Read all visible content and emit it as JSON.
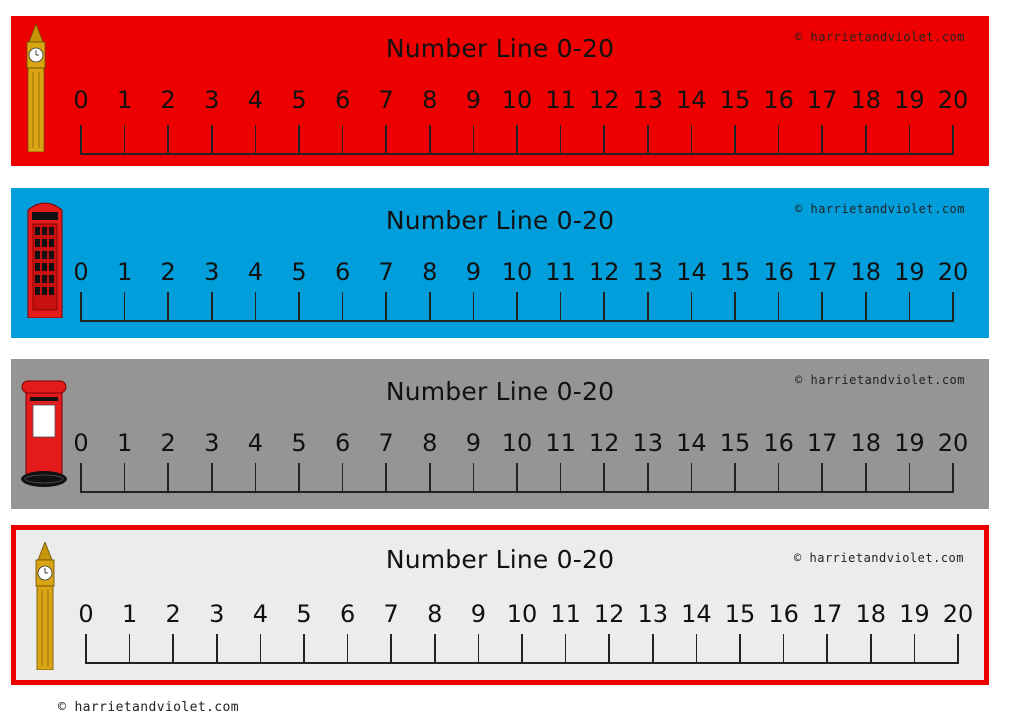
{
  "strips": [
    {
      "title": "Number Line 0-20",
      "credit": "© harrietandviolet.com",
      "background": "#ee0000",
      "icon": "big-ben-icon",
      "numbers": [
        "0",
        "1",
        "2",
        "3",
        "4",
        "5",
        "6",
        "7",
        "8",
        "9",
        "10",
        "11",
        "12",
        "13",
        "14",
        "15",
        "16",
        "17",
        "18",
        "19",
        "20"
      ]
    },
    {
      "title": "Number Line 0-20",
      "credit": "© harrietandviolet.com",
      "background": "#009fdb",
      "icon": "phone-box-icon",
      "numbers": [
        "0",
        "1",
        "2",
        "3",
        "4",
        "5",
        "6",
        "7",
        "8",
        "9",
        "10",
        "11",
        "12",
        "13",
        "14",
        "15",
        "16",
        "17",
        "18",
        "19",
        "20"
      ]
    },
    {
      "title": "Number Line 0-20",
      "credit": "© harrietandviolet.com",
      "background": "#959595",
      "icon": "postbox-icon",
      "numbers": [
        "0",
        "1",
        "2",
        "3",
        "4",
        "5",
        "6",
        "7",
        "8",
        "9",
        "10",
        "11",
        "12",
        "13",
        "14",
        "15",
        "16",
        "17",
        "18",
        "19",
        "20"
      ]
    },
    {
      "title": "Number Line 0-20",
      "credit": "© harrietandviolet.com",
      "background": "#ececec",
      "border_color": "#ee0000",
      "icon": "big-ben-icon",
      "numbers": [
        "0",
        "1",
        "2",
        "3",
        "4",
        "5",
        "6",
        "7",
        "8",
        "9",
        "10",
        "11",
        "12",
        "13",
        "14",
        "15",
        "16",
        "17",
        "18",
        "19",
        "20"
      ]
    }
  ],
  "footer": "© harrietandviolet.com"
}
